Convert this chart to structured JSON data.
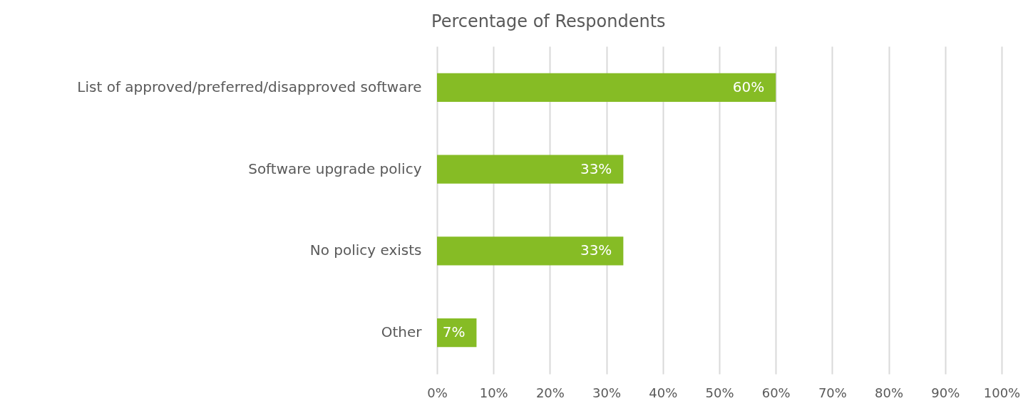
{
  "chart_data": {
    "type": "bar",
    "orientation": "horizontal",
    "title": "Percentage of Respondents",
    "categories": [
      "List of approved/preferred/disapproved software",
      "Software upgrade policy",
      "No policy exists",
      "Other"
    ],
    "values": [
      60,
      33,
      33,
      7
    ],
    "value_labels": [
      "60%",
      "33%",
      "33%",
      "7%"
    ],
    "color": "#86bc25",
    "xlim": [
      0,
      100
    ],
    "xticks": [
      {
        "value": 0,
        "label": "0%"
      },
      {
        "value": 10,
        "label": "10%"
      },
      {
        "value": 20,
        "label": "20%"
      },
      {
        "value": 30,
        "label": "30%"
      },
      {
        "value": 40,
        "label": "40%"
      },
      {
        "value": 50,
        "label": "50%"
      },
      {
        "value": 60,
        "label": "60%"
      },
      {
        "value": 70,
        "label": "70%"
      },
      {
        "value": 80,
        "label": "80%"
      },
      {
        "value": 90,
        "label": "90%"
      },
      {
        "value": 100,
        "label": "100%"
      }
    ],
    "grid": "x"
  }
}
